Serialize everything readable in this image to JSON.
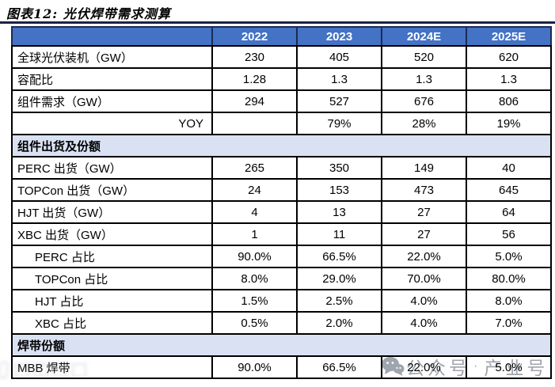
{
  "title": "图表12: 光伏焊带需求测算",
  "chart_data": {
    "type": "table",
    "title": "图表12: 光伏焊带需求测算",
    "columns": [
      "",
      "2022",
      "2023",
      "2024E",
      "2025E"
    ],
    "rows": [
      {
        "type": "data",
        "label": "全球光伏装机（GW）",
        "values": [
          "230",
          "405",
          "520",
          "620"
        ]
      },
      {
        "type": "data",
        "label": "容配比",
        "values": [
          "1.28",
          "1.3",
          "1.3",
          "1.3"
        ]
      },
      {
        "type": "data",
        "label": "组件需求（GW）",
        "values": [
          "294",
          "527",
          "676",
          "806"
        ]
      },
      {
        "type": "data",
        "label": "YOY",
        "align": "right",
        "values": [
          "",
          "79%",
          "28%",
          "19%"
        ]
      },
      {
        "type": "section",
        "label": "组件出货及份额"
      },
      {
        "type": "data",
        "label": "PERC 出货（GW）",
        "values": [
          "265",
          "350",
          "149",
          "40"
        ]
      },
      {
        "type": "data",
        "label": "TOPCon 出货（GW）",
        "values": [
          "24",
          "153",
          "473",
          "645"
        ]
      },
      {
        "type": "data",
        "label": "HJT 出货（GW）",
        "values": [
          "4",
          "13",
          "27",
          "64"
        ]
      },
      {
        "type": "data",
        "label": "XBC 出货（GW）",
        "values": [
          "1",
          "11",
          "27",
          "56"
        ]
      },
      {
        "type": "data",
        "label": "PERC 占比",
        "indent": true,
        "values": [
          "90.0%",
          "66.5%",
          "22.0%",
          "5.0%"
        ]
      },
      {
        "type": "data",
        "label": "TOPCon 占比",
        "indent": true,
        "values": [
          "8.0%",
          "29.0%",
          "70.0%",
          "80.0%"
        ]
      },
      {
        "type": "data",
        "label": "HJT 占比",
        "indent": true,
        "values": [
          "1.5%",
          "2.5%",
          "4.0%",
          "8.0%"
        ]
      },
      {
        "type": "data",
        "label": "XBC 占比",
        "indent": true,
        "values": [
          "0.5%",
          "2.0%",
          "4.0%",
          "7.0%"
        ]
      },
      {
        "type": "section",
        "label": "焊带份额"
      },
      {
        "type": "data",
        "label": "MBB 焊带",
        "values": [
          "90.0%",
          "66.5%",
          "22.0%",
          "5.0%"
        ]
      }
    ]
  },
  "watermark": {
    "wechat_label": "公众号",
    "separator": "·",
    "industry_label": "产业号"
  },
  "colors": {
    "header_bg": "#4472C4",
    "header_text": "#FFFFFF",
    "header_divider": "#1B2A55",
    "section_bg": "#D9E1F2",
    "cell_border": "#000000",
    "title_rule": "#1A2444",
    "watermark_gray": "#8E959D"
  }
}
